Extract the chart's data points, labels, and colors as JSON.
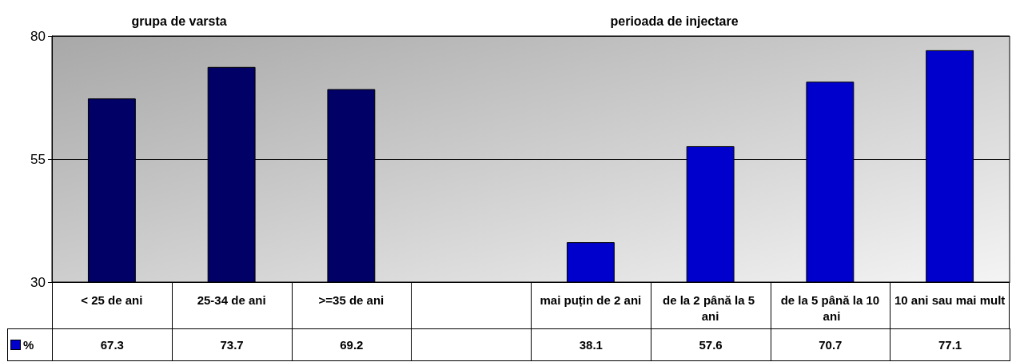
{
  "chart_data": {
    "type": "bar",
    "categories": [
      "< 25 de ani",
      "25-34 de ani",
      ">=35 de ani",
      null,
      "mai puțin de 2 ani",
      "de la 2 până la 5 ani",
      "de la 5 până la 10 ani",
      "10 ani sau mai mult"
    ],
    "series": [
      {
        "name": "%",
        "color": "#0000cc",
        "colors": [
          "#000066",
          "#000066",
          "#000066",
          null,
          "#0000cc",
          "#0000cc",
          "#0000cc",
          "#0000cc"
        ],
        "values": [
          67.3,
          73.7,
          69.2,
          null,
          38.1,
          57.6,
          70.7,
          77.1
        ]
      }
    ],
    "ylim": [
      30,
      80
    ],
    "yticks": [
      30,
      55,
      80
    ],
    "grid": "y",
    "data_labels": true,
    "legend": "bottom left",
    "annotations": [
      "grupa de varsta",
      "perioada de injectare"
    ]
  }
}
